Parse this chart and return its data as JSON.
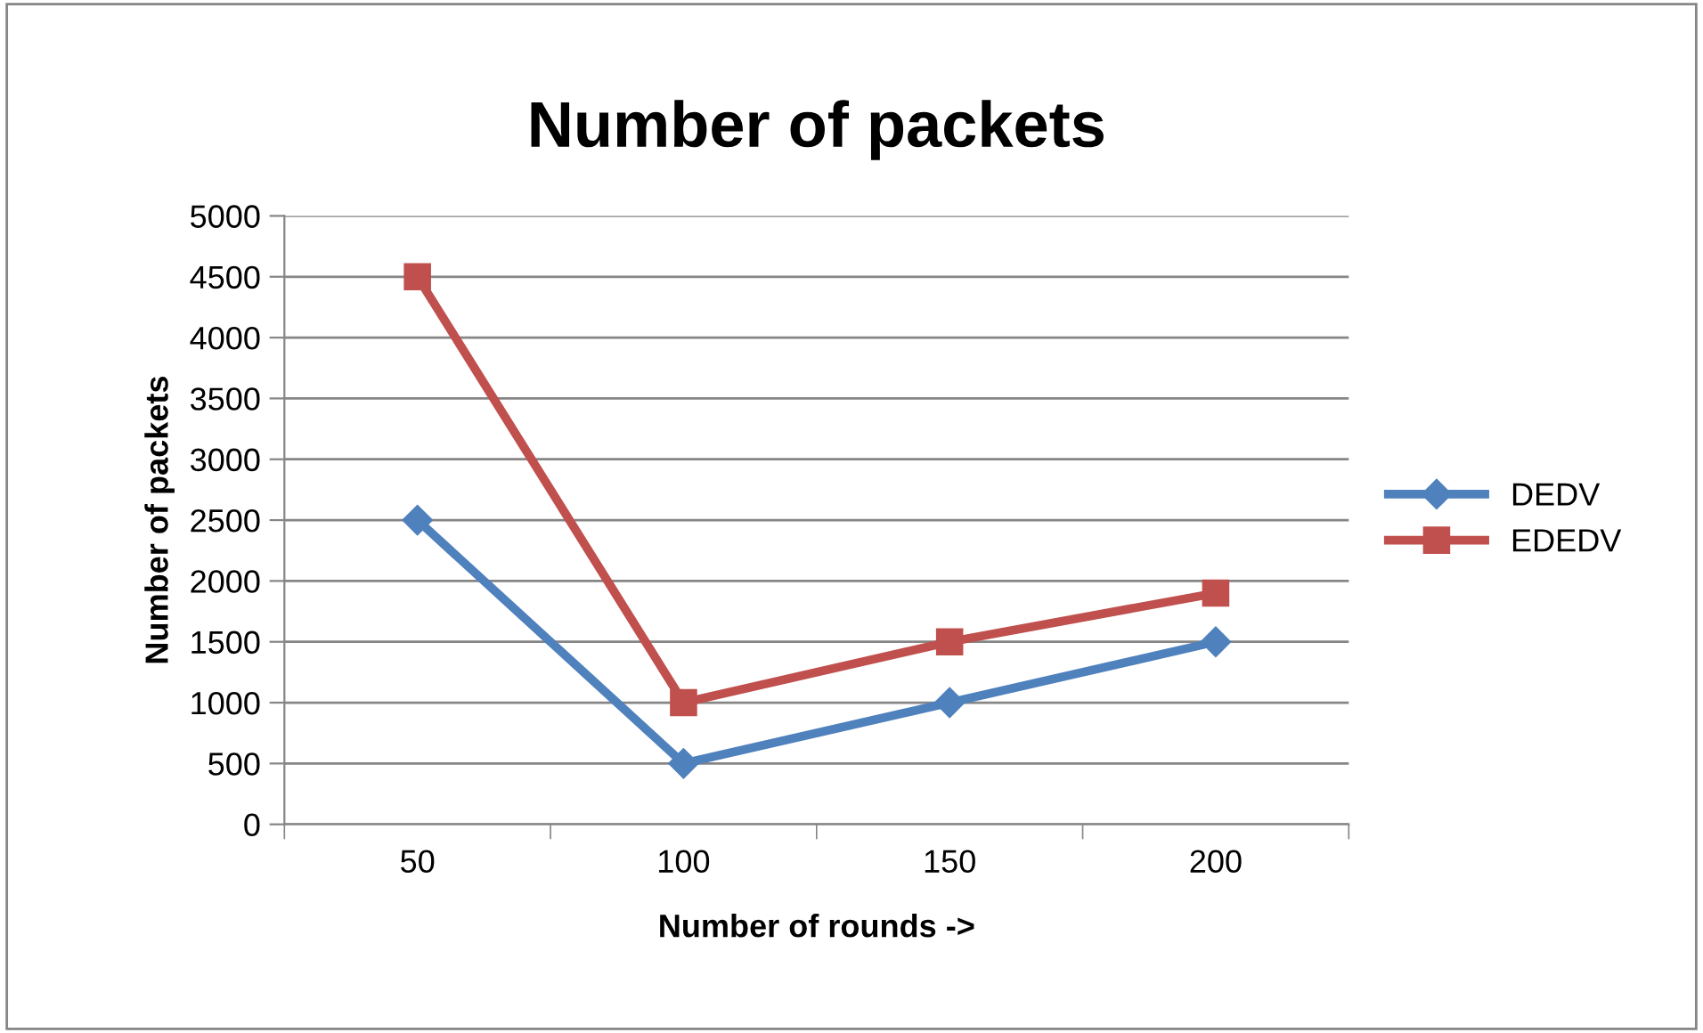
{
  "chart_data": {
    "type": "line",
    "title": "Number of packets",
    "xlabel": "Number of rounds ->",
    "ylabel": "Number of packets",
    "categories": [
      "50",
      "100",
      "150",
      "200"
    ],
    "series": [
      {
        "name": "DEDV",
        "color": "#4f81bd",
        "marker": "diamond",
        "values": [
          2500,
          500,
          1000,
          1500
        ]
      },
      {
        "name": "EDEDV",
        "color": "#c0504d",
        "marker": "square",
        "values": [
          4500,
          1000,
          1500,
          1900
        ]
      }
    ],
    "ylim": [
      0,
      5000
    ],
    "yticks": [
      0,
      500,
      1000,
      1500,
      2000,
      2500,
      3000,
      3500,
      4000,
      4500,
      5000
    ],
    "grid": "y",
    "legend": "right",
    "line_style": "solid"
  }
}
